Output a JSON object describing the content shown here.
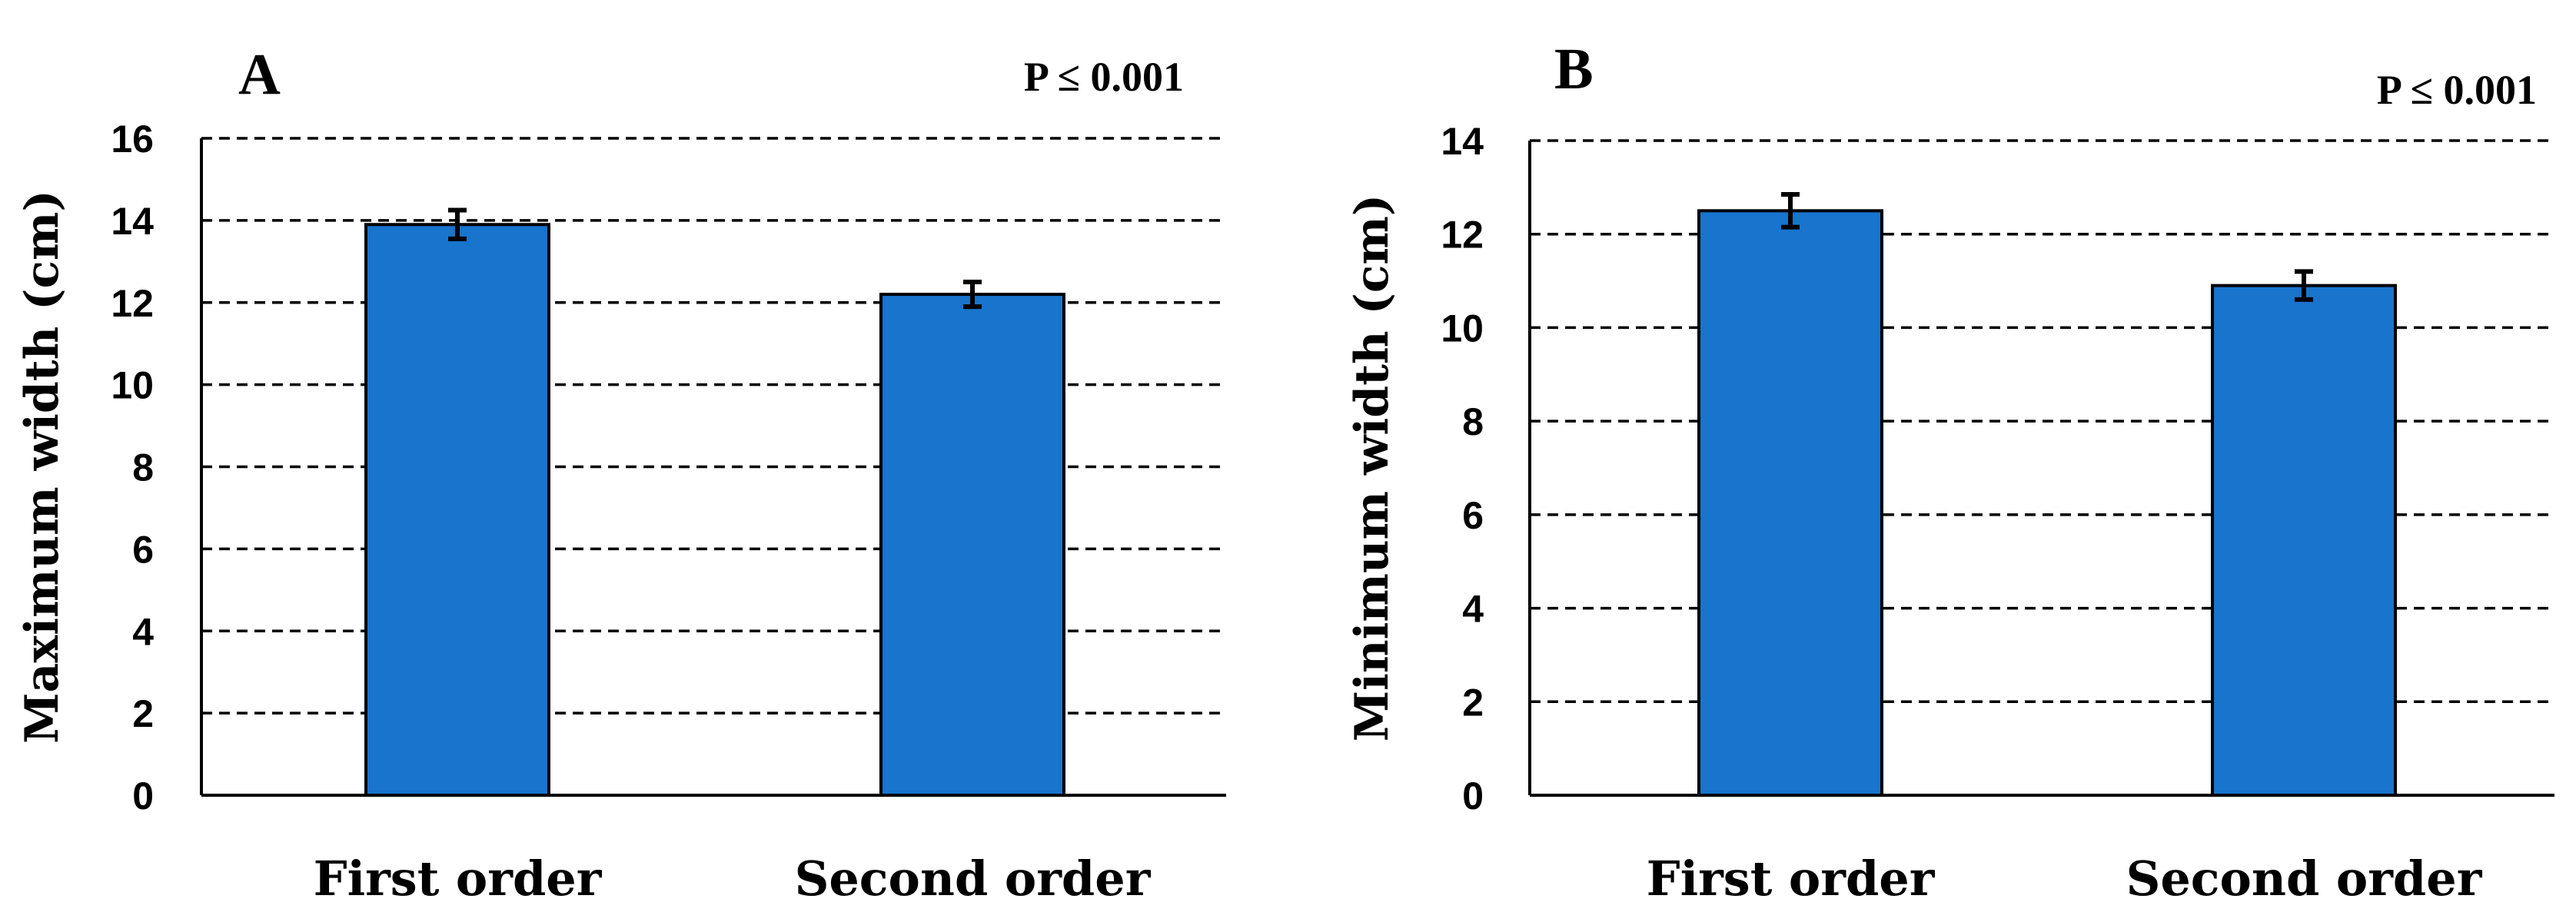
{
  "chart_data": [
    {
      "type": "bar",
      "panel_label": "A",
      "annotation": "P ≤ 0.001",
      "categories": [
        "First order",
        "Second order"
      ],
      "values": [
        13.9,
        12.2
      ],
      "errors": [
        0.35,
        0.3
      ],
      "ylabel": "Maximum width (cm)",
      "xlabel": "",
      "ylim": [
        0,
        16
      ],
      "yticks": [
        "0",
        "2",
        "4",
        "6",
        "8",
        "10",
        "12",
        "14",
        "16"
      ],
      "grid": "horizontal-dashed",
      "bar_color": "#1874CD"
    },
    {
      "type": "bar",
      "panel_label": "B",
      "annotation": "P ≤ 0.001",
      "categories": [
        "First order",
        "Second order"
      ],
      "values": [
        12.5,
        10.9
      ],
      "errors": [
        0.35,
        0.3
      ],
      "ylabel": "Minimum width (cm)",
      "xlabel": "",
      "ylim": [
        0,
        14
      ],
      "yticks": [
        "0",
        "2",
        "4",
        "6",
        "8",
        "10",
        "12",
        "14"
      ],
      "grid": "horizontal-dashed",
      "bar_color": "#1874CD"
    }
  ]
}
